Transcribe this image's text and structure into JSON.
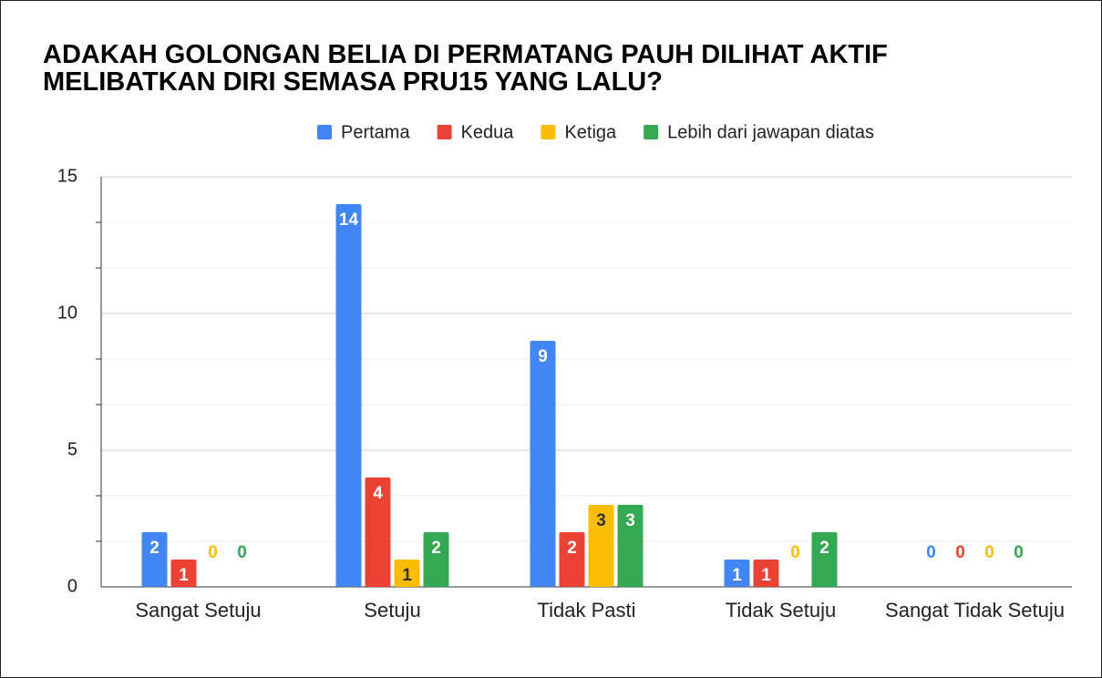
{
  "chart_data": {
    "type": "bar",
    "title": "ADAKAH GOLONGAN BELIA DI PERMATANG PAUH DILIHAT AKTIF MELIBATKAN DIRI SEMASA PRU15 YANG LALU?",
    "categories": [
      "Sangat Setuju",
      "Setuju",
      "Tidak Pasti",
      "Tidak Setuju",
      "Sangat Tidak Setuju"
    ],
    "series": [
      {
        "name": "Pertama",
        "color": "#4285f4",
        "values": [
          2,
          14,
          9,
          1,
          0
        ]
      },
      {
        "name": "Kedua",
        "color": "#ea4335",
        "values": [
          1,
          4,
          2,
          1,
          0
        ]
      },
      {
        "name": "Ketiga",
        "color": "#fbbc04",
        "values": [
          0,
          1,
          3,
          0,
          0
        ]
      },
      {
        "name": "Lebih dari jawapan diatas",
        "color": "#34a853",
        "values": [
          0,
          2,
          3,
          2,
          0
        ]
      }
    ],
    "ylim": [
      0,
      15
    ],
    "yticks": [
      0,
      5,
      10,
      15
    ],
    "grid": true,
    "legend": "top"
  }
}
